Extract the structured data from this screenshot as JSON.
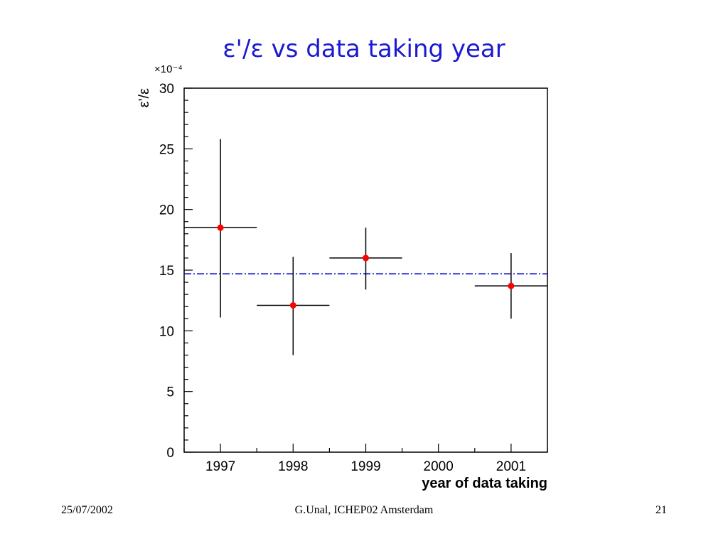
{
  "slide": {
    "title": "ε'/ε vs data taking year",
    "footer_date": "25/07/2002",
    "footer_center": "G.Unal, ICHEP02 Amsterdam",
    "page_number": "21"
  },
  "colors": {
    "title": "#1a1ad0",
    "points": "#ff0000",
    "average_line": "#0000cc",
    "axes": "#000000"
  },
  "chart_data": {
    "type": "scatter",
    "ylabel": "ε'/ε",
    "xlabel": "year of data taking",
    "y_multiplier": "×10⁻⁴",
    "categories": [
      "1997",
      "1998",
      "1999",
      "2000",
      "2001"
    ],
    "xlim": [
      1996.5,
      2001.5
    ],
    "ylim": [
      0,
      30
    ],
    "y_ticks": [
      0,
      5,
      10,
      15,
      20,
      25,
      30
    ],
    "y_minor_step": 1,
    "x_bin_halfwidth": 0.5,
    "points": [
      {
        "x": 1997,
        "y": 18.5,
        "yerr_low": 11.1,
        "yerr_high": 25.8
      },
      {
        "x": 1998,
        "y": 12.1,
        "yerr_low": 8.0,
        "yerr_high": 16.1
      },
      {
        "x": 1999,
        "y": 16.0,
        "yerr_low": 13.4,
        "yerr_high": 18.5
      },
      {
        "x": 2001,
        "y": 13.7,
        "yerr_low": 11.0,
        "yerr_high": 16.4
      }
    ],
    "average": 14.7,
    "grid": false,
    "legend": "none"
  }
}
